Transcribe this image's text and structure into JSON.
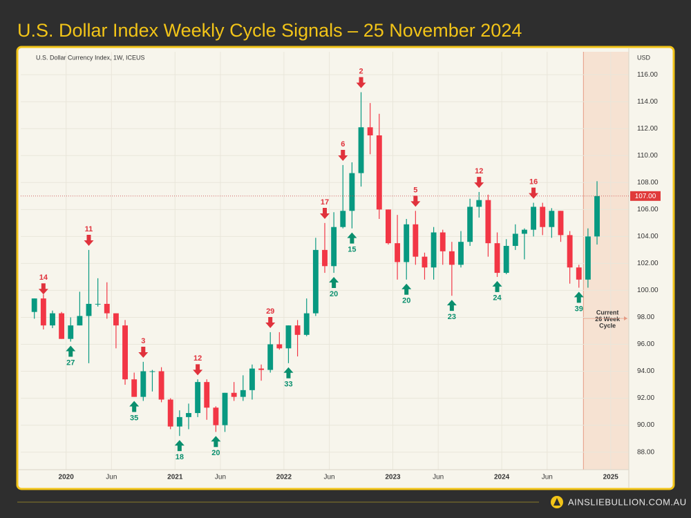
{
  "chart_data": {
    "type": "candlestick",
    "title": "U.S. Dollar Index Weekly Cycle Signals – 25 November 2024",
    "subtitle": "U.S. Dollar Currency Index, 1W, ICEUS",
    "y_axis_label": "USD",
    "x": [
      "2019-09",
      "2019-10",
      "2019-11",
      "2019-12",
      "2020-01",
      "2020-02",
      "2020-03",
      "2020-04",
      "2020-05",
      "2020-06",
      "2020-07",
      "2020-08",
      "2020-09",
      "2020-10",
      "2020-11",
      "2020-12",
      "2021-01",
      "2021-02",
      "2021-03",
      "2021-04",
      "2021-05",
      "2021-06",
      "2021-07",
      "2021-08",
      "2021-09",
      "2021-10",
      "2021-11",
      "2021-12",
      "2022-01",
      "2022-02",
      "2022-03",
      "2022-04",
      "2022-05",
      "2022-06",
      "2022-07",
      "2022-08",
      "2022-09",
      "2022-10",
      "2022-11",
      "2022-12",
      "2023-01",
      "2023-02",
      "2023-03",
      "2023-04",
      "2023-05",
      "2023-06",
      "2023-07",
      "2023-08",
      "2023-09",
      "2023-10",
      "2023-11",
      "2023-12",
      "2024-01",
      "2024-02",
      "2024-03",
      "2024-04",
      "2024-05",
      "2024-06",
      "2024-07",
      "2024-08",
      "2024-09",
      "2024-10",
      "2024-11"
    ],
    "open": [
      98.4,
      99.4,
      97.4,
      98.3,
      96.4,
      97.4,
      98.1,
      99.0,
      99.0,
      98.3,
      97.4,
      93.4,
      92.1,
      94.0,
      94.0,
      91.9,
      89.9,
      90.6,
      90.9,
      93.2,
      91.3,
      90.0,
      92.4,
      92.1,
      92.6,
      94.2,
      94.1,
      96.0,
      95.7,
      97.4,
      96.7,
      98.3,
      103.0,
      101.8,
      104.7,
      105.9,
      108.7,
      112.1,
      111.5,
      106.0,
      103.5,
      102.1,
      104.9,
      102.5,
      101.7,
      104.3,
      102.9,
      101.9,
      103.6,
      106.2,
      106.7,
      103.5,
      101.3,
      103.3,
      104.2,
      104.5,
      106.2,
      104.7,
      105.9,
      104.1,
      101.7,
      100.8,
      104.0
    ],
    "high": [
      99.4,
      99.7,
      98.5,
      98.4,
      98.0,
      99.9,
      103.0,
      100.9,
      100.6,
      98.3,
      97.8,
      93.9,
      94.7,
      94.1,
      94.3,
      92.0,
      91.1,
      91.6,
      93.4,
      93.4,
      91.4,
      92.4,
      93.2,
      93.7,
      94.5,
      94.5,
      96.9,
      96.9,
      97.4,
      97.8,
      99.4,
      103.9,
      105.0,
      105.8,
      109.3,
      109.5,
      114.7,
      113.9,
      113.1,
      106.0,
      105.6,
      105.3,
      105.9,
      102.8,
      104.7,
      104.5,
      103.6,
      104.4,
      106.8,
      107.3,
      107.1,
      104.3,
      103.8,
      104.9,
      104.6,
      106.5,
      106.5,
      106.1,
      105.9,
      104.4,
      101.9,
      104.6,
      108.1
    ],
    "low": [
      97.9,
      97.1,
      97.2,
      96.4,
      96.2,
      97.4,
      94.6,
      98.8,
      97.9,
      95.7,
      93.0,
      92.1,
      91.8,
      92.5,
      91.7,
      89.7,
      89.2,
      89.7,
      90.6,
      90.4,
      89.5,
      89.5,
      91.8,
      91.8,
      91.9,
      93.3,
      93.9,
      95.6,
      94.6,
      95.1,
      96.6,
      98.1,
      101.3,
      101.3,
      104.6,
      104.6,
      107.7,
      110.1,
      105.3,
      103.4,
      100.8,
      100.8,
      101.9,
      100.8,
      100.8,
      101.9,
      99.6,
      101.7,
      103.3,
      105.4,
      102.5,
      101.0,
      101.2,
      103.0,
      102.3,
      104.0,
      104.1,
      103.9,
      103.6,
      100.5,
      100.2,
      100.2,
      103.4
    ],
    "close": [
      99.4,
      97.4,
      98.3,
      96.4,
      97.4,
      98.1,
      99.0,
      99.0,
      98.3,
      97.4,
      93.4,
      92.1,
      94.0,
      94.0,
      91.9,
      89.9,
      90.6,
      90.9,
      93.2,
      91.3,
      90.0,
      92.4,
      92.1,
      92.6,
      94.2,
      94.1,
      96.0,
      95.7,
      97.4,
      96.7,
      98.3,
      103.0,
      101.8,
      104.7,
      105.9,
      108.7,
      112.1,
      111.5,
      106.0,
      103.5,
      102.1,
      104.9,
      102.5,
      101.7,
      104.3,
      102.9,
      101.9,
      103.6,
      106.2,
      106.7,
      103.5,
      101.3,
      103.3,
      104.2,
      104.5,
      106.2,
      104.7,
      105.9,
      104.1,
      101.7,
      100.8,
      104.0,
      107.0
    ],
    "up_color": "#089981",
    "down_color": "#f23645",
    "xlim": [
      "2019-08",
      "2025-03"
    ],
    "xticks": [
      {
        "value": "2020-01",
        "label": "2020"
      },
      {
        "value": "2020-06",
        "label": "Jun"
      },
      {
        "value": "2021-01",
        "label": "2021"
      },
      {
        "value": "2021-06",
        "label": "Jun"
      },
      {
        "value": "2022-01",
        "label": "2022"
      },
      {
        "value": "2022-06",
        "label": "Jun"
      },
      {
        "value": "2023-01",
        "label": "2023"
      },
      {
        "value": "2023-06",
        "label": "Jun"
      },
      {
        "value": "2024-01",
        "label": "2024"
      },
      {
        "value": "2024-06",
        "label": "Jun"
      },
      {
        "value": "2025-01",
        "label": "2025"
      }
    ],
    "ylim": [
      86.7,
      117.7
    ],
    "yticks": [
      {
        "value": 88,
        "label": "88.00"
      },
      {
        "value": 90,
        "label": "90.00"
      },
      {
        "value": 92,
        "label": "92.00"
      },
      {
        "value": 94,
        "label": "94.00"
      },
      {
        "value": 96,
        "label": "96.00"
      },
      {
        "value": 98,
        "label": "98.00"
      },
      {
        "value": 100,
        "label": "100.00"
      },
      {
        "value": 102,
        "label": "102.00"
      },
      {
        "value": 104,
        "label": "104.00"
      },
      {
        "value": 106,
        "label": "106.00"
      },
      {
        "value": 108,
        "label": "108.00"
      },
      {
        "value": 110,
        "label": "110.00"
      },
      {
        "value": 112,
        "label": "112.00"
      },
      {
        "value": 114,
        "label": "114.00"
      },
      {
        "value": 116,
        "label": "116.00"
      }
    ],
    "grid": true,
    "current_price": {
      "value": 107.0,
      "label": "107.00"
    },
    "signals": [
      {
        "x": "2019-10",
        "value": 99.6,
        "weeks": 14,
        "kind": "high"
      },
      {
        "x": "2020-03",
        "value": 103.2,
        "weeks": 11,
        "kind": "high"
      },
      {
        "x": "2020-09",
        "value": 94.9,
        "weeks": 3,
        "kind": "high"
      },
      {
        "x": "2021-03",
        "value": 93.6,
        "weeks": 12,
        "kind": "high"
      },
      {
        "x": "2021-11",
        "value": 97.1,
        "weeks": 29,
        "kind": "high"
      },
      {
        "x": "2022-05",
        "value": 105.2,
        "weeks": 17,
        "kind": "high"
      },
      {
        "x": "2022-07",
        "value": 109.5,
        "weeks": 6,
        "kind": "high"
      },
      {
        "x": "2022-09",
        "value": 114.9,
        "weeks": 2,
        "kind": "high"
      },
      {
        "x": "2023-03",
        "value": 106.1,
        "weeks": 5,
        "kind": "high"
      },
      {
        "x": "2023-10",
        "value": 107.5,
        "weeks": 12,
        "kind": "high"
      },
      {
        "x": "2024-04",
        "value": 106.7,
        "weeks": 16,
        "kind": "high"
      },
      {
        "x": "2020-01",
        "value": 96.0,
        "weeks": 27,
        "kind": "low"
      },
      {
        "x": "2020-08",
        "value": 91.9,
        "weeks": 35,
        "kind": "low"
      },
      {
        "x": "2021-01",
        "value": 89.0,
        "weeks": 18,
        "kind": "low"
      },
      {
        "x": "2021-05",
        "value": 89.3,
        "weeks": 20,
        "kind": "low"
      },
      {
        "x": "2022-01",
        "value": 94.4,
        "weeks": 33,
        "kind": "low"
      },
      {
        "x": "2022-06",
        "value": 101.1,
        "weeks": 20,
        "kind": "low"
      },
      {
        "x": "2022-08",
        "value": 104.4,
        "weeks": 15,
        "kind": "low"
      },
      {
        "x": "2023-02",
        "value": 100.6,
        "weeks": 20,
        "kind": "low"
      },
      {
        "x": "2023-07",
        "value": 99.4,
        "weeks": 23,
        "kind": "low"
      },
      {
        "x": "2023-12",
        "value": 100.8,
        "weeks": 24,
        "kind": "low"
      },
      {
        "x": "2024-09",
        "value": 100.0,
        "weeks": 39,
        "kind": "low"
      }
    ],
    "cycle_region": {
      "start": "2024-10",
      "label": [
        "Current",
        "26 Week",
        "Cycle"
      ]
    }
  },
  "footer": "AINSLIEBULLION.COM.AU"
}
